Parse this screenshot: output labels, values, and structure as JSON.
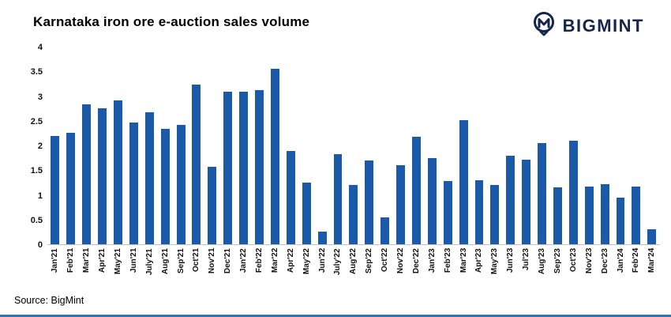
{
  "header": {
    "title": "Karnataka iron ore e-auction sales volume",
    "logo_text": "BIGMINT",
    "logo_color": "#16254c"
  },
  "footer": {
    "source": "Source: BigMint"
  },
  "chart_data": {
    "type": "bar",
    "title": "Karnataka iron ore e-auction sales volume",
    "xlabel": "",
    "ylabel": "",
    "ylim": [
      0,
      4
    ],
    "grid": false,
    "legend": "none",
    "bar_color": "#1b5aa8",
    "yticks": [
      {
        "value": 0,
        "label": "0"
      },
      {
        "value": 0.5,
        "label": "0.5"
      },
      {
        "value": 1,
        "label": "1"
      },
      {
        "value": 1.5,
        "label": "1.5"
      },
      {
        "value": 2,
        "label": "2"
      },
      {
        "value": 2.5,
        "label": "2.5"
      },
      {
        "value": 3,
        "label": "3"
      },
      {
        "value": 3.5,
        "label": "3.5"
      },
      {
        "value": 4,
        "label": "4"
      }
    ],
    "categories": [
      "Jan'21",
      "Feb'21",
      "Mar'21",
      "Apr'21",
      "May'21",
      "Jun'21",
      "July'21",
      "Aug'21",
      "Sep'21",
      "Oct'21",
      "Nov'21",
      "Dec'21",
      "Jan'22",
      "Feb'22",
      "Mar'22",
      "Apr'22",
      "May'22",
      "Jun'22",
      "July'22",
      "Aug'22",
      "Sep'22",
      "Oct'22",
      "Nov'22",
      "Dec'22",
      "Jan'23",
      "Feb'23",
      "Mar'23",
      "Apr'23",
      "May'23",
      "Jun'23",
      "Jul'23",
      "Aug'23",
      "Sep'23",
      "Oct'23",
      "Nov'23",
      "Dec'23",
      "Jan'24",
      "Feb'24",
      "Mar'24"
    ],
    "values": [
      2.2,
      2.27,
      2.85,
      2.77,
      2.93,
      2.48,
      2.68,
      2.35,
      2.43,
      3.25,
      1.57,
      3.1,
      3.1,
      3.13,
      3.57,
      1.9,
      1.25,
      0.25,
      1.83,
      1.2,
      1.7,
      0.55,
      1.6,
      2.18,
      1.75,
      1.28,
      2.52,
      1.3,
      1.2,
      1.8,
      1.72,
      2.05,
      1.15,
      2.1,
      1.17,
      1.22,
      0.95,
      1.17,
      0.3
    ]
  }
}
